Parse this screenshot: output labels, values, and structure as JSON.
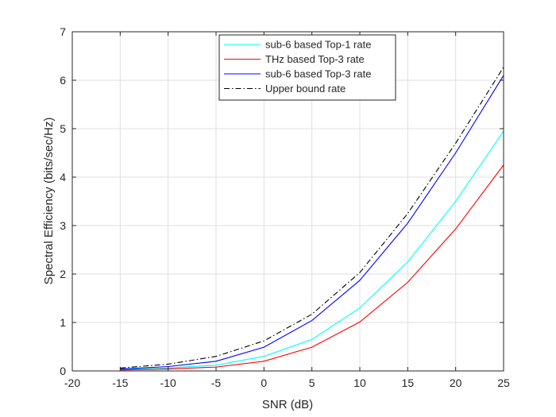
{
  "chart_data": {
    "type": "line",
    "xlabel": "SNR (dB)",
    "ylabel": "Spectral Efficiency (bits/sec/Hz)",
    "xlim": [
      -20,
      25
    ],
    "ylim": [
      0,
      7
    ],
    "xticks": [
      -20,
      -15,
      -10,
      -5,
      0,
      5,
      10,
      15,
      20,
      25
    ],
    "yticks": [
      0,
      1,
      2,
      3,
      4,
      5,
      6,
      7
    ],
    "grid": true,
    "legend_position": "top-center",
    "x": [
      -15,
      -10,
      -5,
      0,
      5,
      10,
      15,
      20,
      25
    ],
    "series": [
      {
        "name": "sub-6 based Top-1 rate",
        "color": "#00ffff",
        "style": "solid",
        "values": [
          0.03,
          0.06,
          0.12,
          0.3,
          0.65,
          1.3,
          2.25,
          3.5,
          4.95
        ]
      },
      {
        "name": "THz based Top-3 rate",
        "color": "#ff0000",
        "style": "solid",
        "values": [
          0.02,
          0.04,
          0.08,
          0.2,
          0.49,
          1.01,
          1.83,
          2.93,
          4.25
        ]
      },
      {
        "name": "sub-6 based Top-3 rate",
        "color": "#0000ff",
        "style": "solid",
        "values": [
          0.04,
          0.09,
          0.2,
          0.49,
          1.04,
          1.87,
          3.05,
          4.5,
          6.1
        ]
      },
      {
        "name": "Upper bound rate",
        "color": "#000000",
        "style": "dashdot",
        "values": [
          0.06,
          0.14,
          0.3,
          0.62,
          1.17,
          2.03,
          3.25,
          4.7,
          6.27
        ]
      }
    ]
  }
}
